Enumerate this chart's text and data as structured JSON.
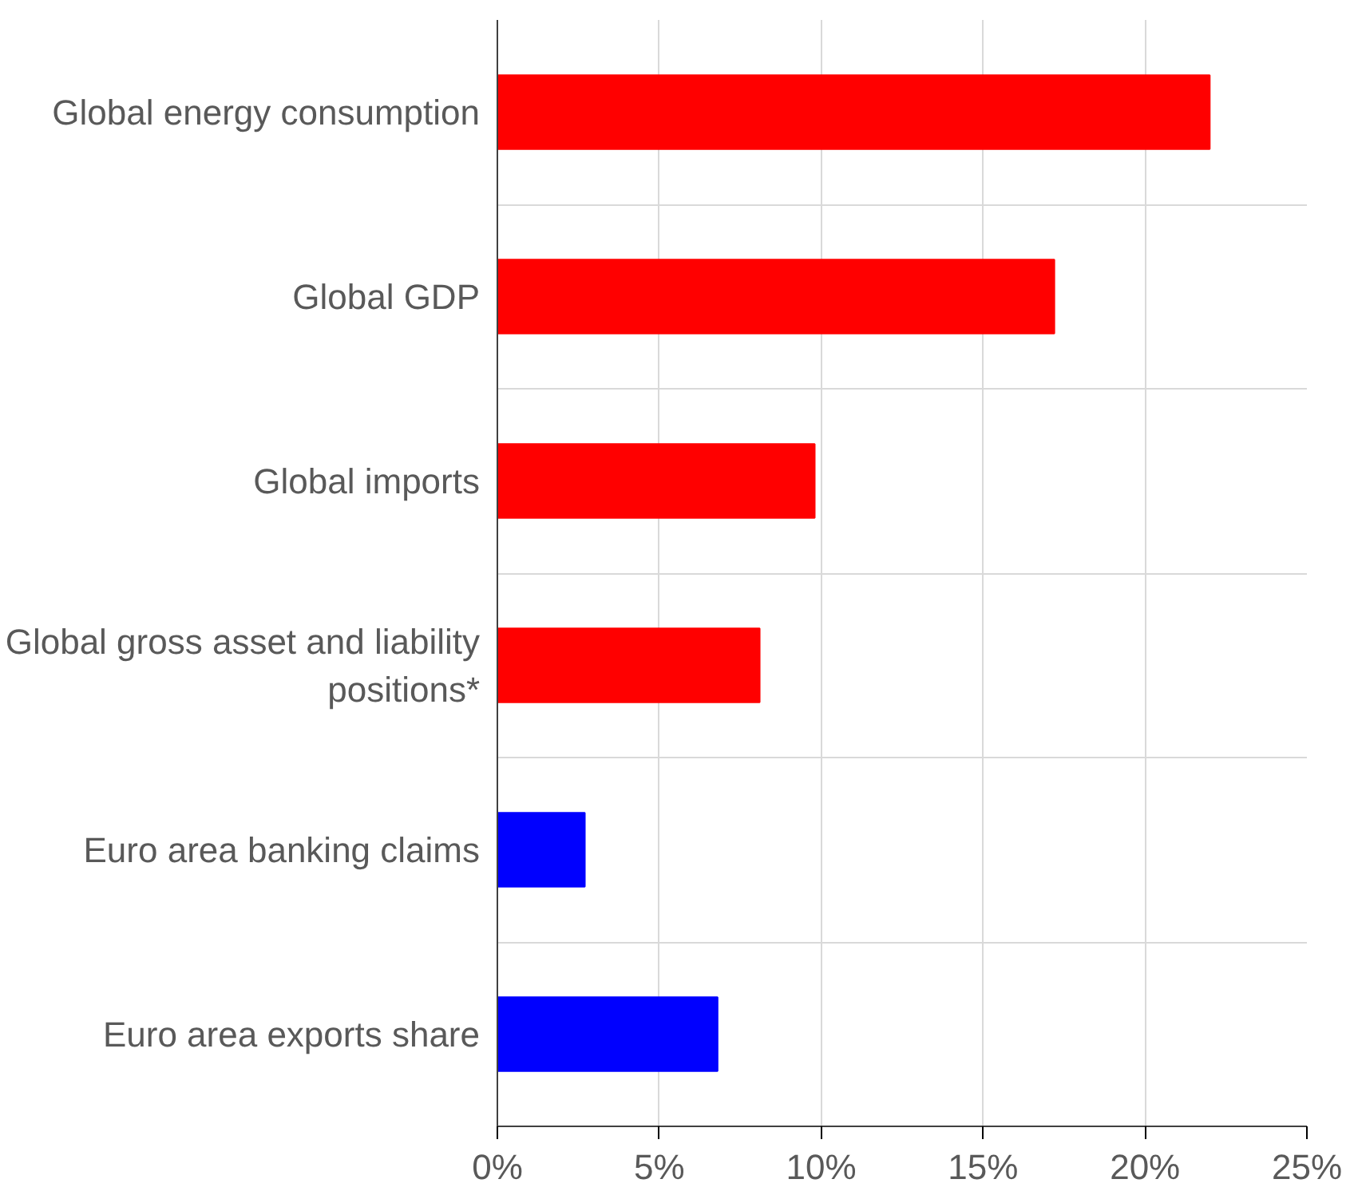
{
  "chart_data": {
    "type": "bar",
    "orientation": "horizontal",
    "categories": [
      "Global energy consumption",
      "Global GDP",
      "Global imports",
      "Global gross asset and liability positions*",
      "Euro area banking claims",
      "Euro area exports share"
    ],
    "values": [
      22.0,
      17.2,
      9.8,
      8.1,
      2.7,
      6.8
    ],
    "colors": [
      "#ff0000",
      "#ff0000",
      "#ff0000",
      "#ff0000",
      "#0000ff",
      "#0000ff"
    ],
    "xlim": [
      0,
      25
    ],
    "xticks": [
      {
        "value": 0,
        "label": "0%"
      },
      {
        "value": 5,
        "label": "5%"
      },
      {
        "value": 10,
        "label": "10%"
      },
      {
        "value": 15,
        "label": "15%"
      },
      {
        "value": 20,
        "label": "20%"
      },
      {
        "value": 25,
        "label": "25%"
      }
    ],
    "grid": true
  }
}
